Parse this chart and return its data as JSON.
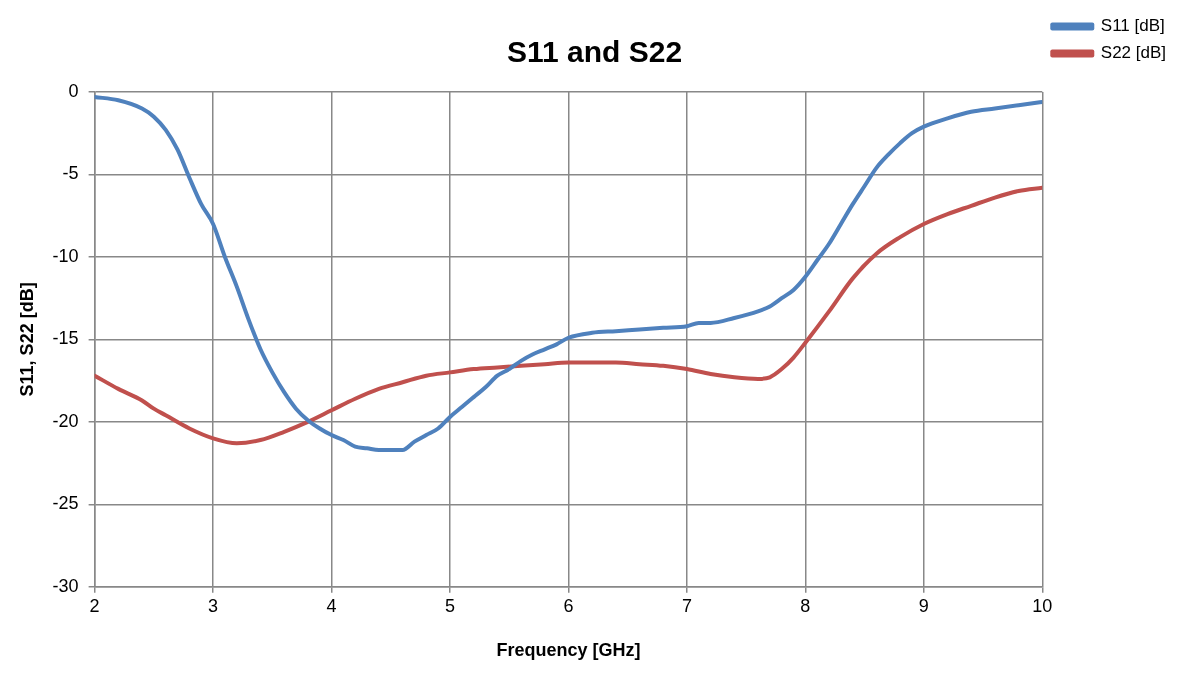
{
  "chart_data": {
    "type": "line",
    "title": "S11 and S22",
    "xlabel": "Frequency [GHz]",
    "ylabel": "S11, S22 [dB]",
    "xlim": [
      2,
      10
    ],
    "xticks": [
      2,
      3,
      4,
      5,
      6,
      7,
      8,
      9,
      10
    ],
    "ylim": [
      -30,
      0
    ],
    "yticks": [
      -30,
      -25,
      -20,
      -15,
      -10,
      -5,
      0
    ],
    "grid": true,
    "legend": "top right",
    "marker": "none",
    "line_style": "solid",
    "series": [
      {
        "name": "S11 [dB]",
        "color": "#4f81bd",
        "x": [
          2,
          2.2,
          2.4,
          2.5,
          2.6,
          2.7,
          2.8,
          2.9,
          3,
          3.1,
          3.2,
          3.3,
          3.4,
          3.5,
          3.6,
          3.7,
          3.8,
          3.9,
          4,
          4.1,
          4.2,
          4.3,
          4.4,
          4.5,
          4.6,
          4.7,
          4.8,
          4.9,
          5,
          5.1,
          5.2,
          5.3,
          5.4,
          5.5,
          5.6,
          5.7,
          5.8,
          5.9,
          6,
          6.2,
          6.4,
          6.6,
          6.8,
          7,
          7.1,
          7.2,
          7.4,
          7.6,
          7.7,
          7.8,
          7.9,
          8,
          8.1,
          8.2,
          8.3,
          8.4,
          8.5,
          8.6,
          8.7,
          8.8,
          8.9,
          9,
          9.2,
          9.4,
          9.6,
          9.8,
          10
        ],
        "values": [
          -0.3,
          -0.5,
          -1,
          -1.5,
          -2.3,
          -3.5,
          -5.2,
          -6.8,
          -8,
          -10,
          -11.8,
          -13.8,
          -15.6,
          -17,
          -18.2,
          -19.2,
          -19.9,
          -20.4,
          -20.8,
          -21.1,
          -21.5,
          -21.6,
          -21.7,
          -21.7,
          -21.7,
          -21.2,
          -20.8,
          -20.4,
          -19.7,
          -19.1,
          -18.5,
          -17.9,
          -17.2,
          -16.8,
          -16.3,
          -15.9,
          -15.6,
          -15.3,
          -14.9,
          -14.6,
          -14.5,
          -14.4,
          -14.3,
          -14.2,
          -14,
          -14,
          -13.7,
          -13.3,
          -13,
          -12.5,
          -12,
          -11.2,
          -10.2,
          -9.2,
          -8,
          -6.8,
          -5.7,
          -4.6,
          -3.8,
          -3.1,
          -2.5,
          -2.1,
          -1.6,
          -1.2,
          -1,
          -0.8,
          -0.6
        ]
      },
      {
        "name": "S22 [dB]",
        "color": "#c0504d",
        "x": [
          2,
          2.2,
          2.4,
          2.5,
          2.6,
          2.8,
          3,
          3.2,
          3.4,
          3.6,
          3.8,
          4,
          4.2,
          4.4,
          4.6,
          4.8,
          5,
          5.2,
          5.4,
          5.6,
          5.8,
          6,
          6.2,
          6.4,
          6.6,
          6.8,
          7,
          7.2,
          7.4,
          7.6,
          7.7,
          7.8,
          7.9,
          8,
          8.2,
          8.4,
          8.6,
          8.8,
          9,
          9.2,
          9.4,
          9.6,
          9.8,
          10
        ],
        "values": [
          -17.2,
          -18,
          -18.7,
          -19.2,
          -19.6,
          -20.4,
          -21,
          -21.3,
          -21.1,
          -20.6,
          -20,
          -19.3,
          -18.6,
          -18,
          -17.6,
          -17.2,
          -17,
          -16.8,
          -16.7,
          -16.6,
          -16.5,
          -16.4,
          -16.4,
          -16.4,
          -16.5,
          -16.6,
          -16.8,
          -17.1,
          -17.3,
          -17.4,
          -17.3,
          -16.8,
          -16.1,
          -15.2,
          -13.3,
          -11.3,
          -9.8,
          -8.8,
          -8,
          -7.4,
          -6.9,
          -6.4,
          -6,
          -5.8
        ]
      }
    ]
  }
}
